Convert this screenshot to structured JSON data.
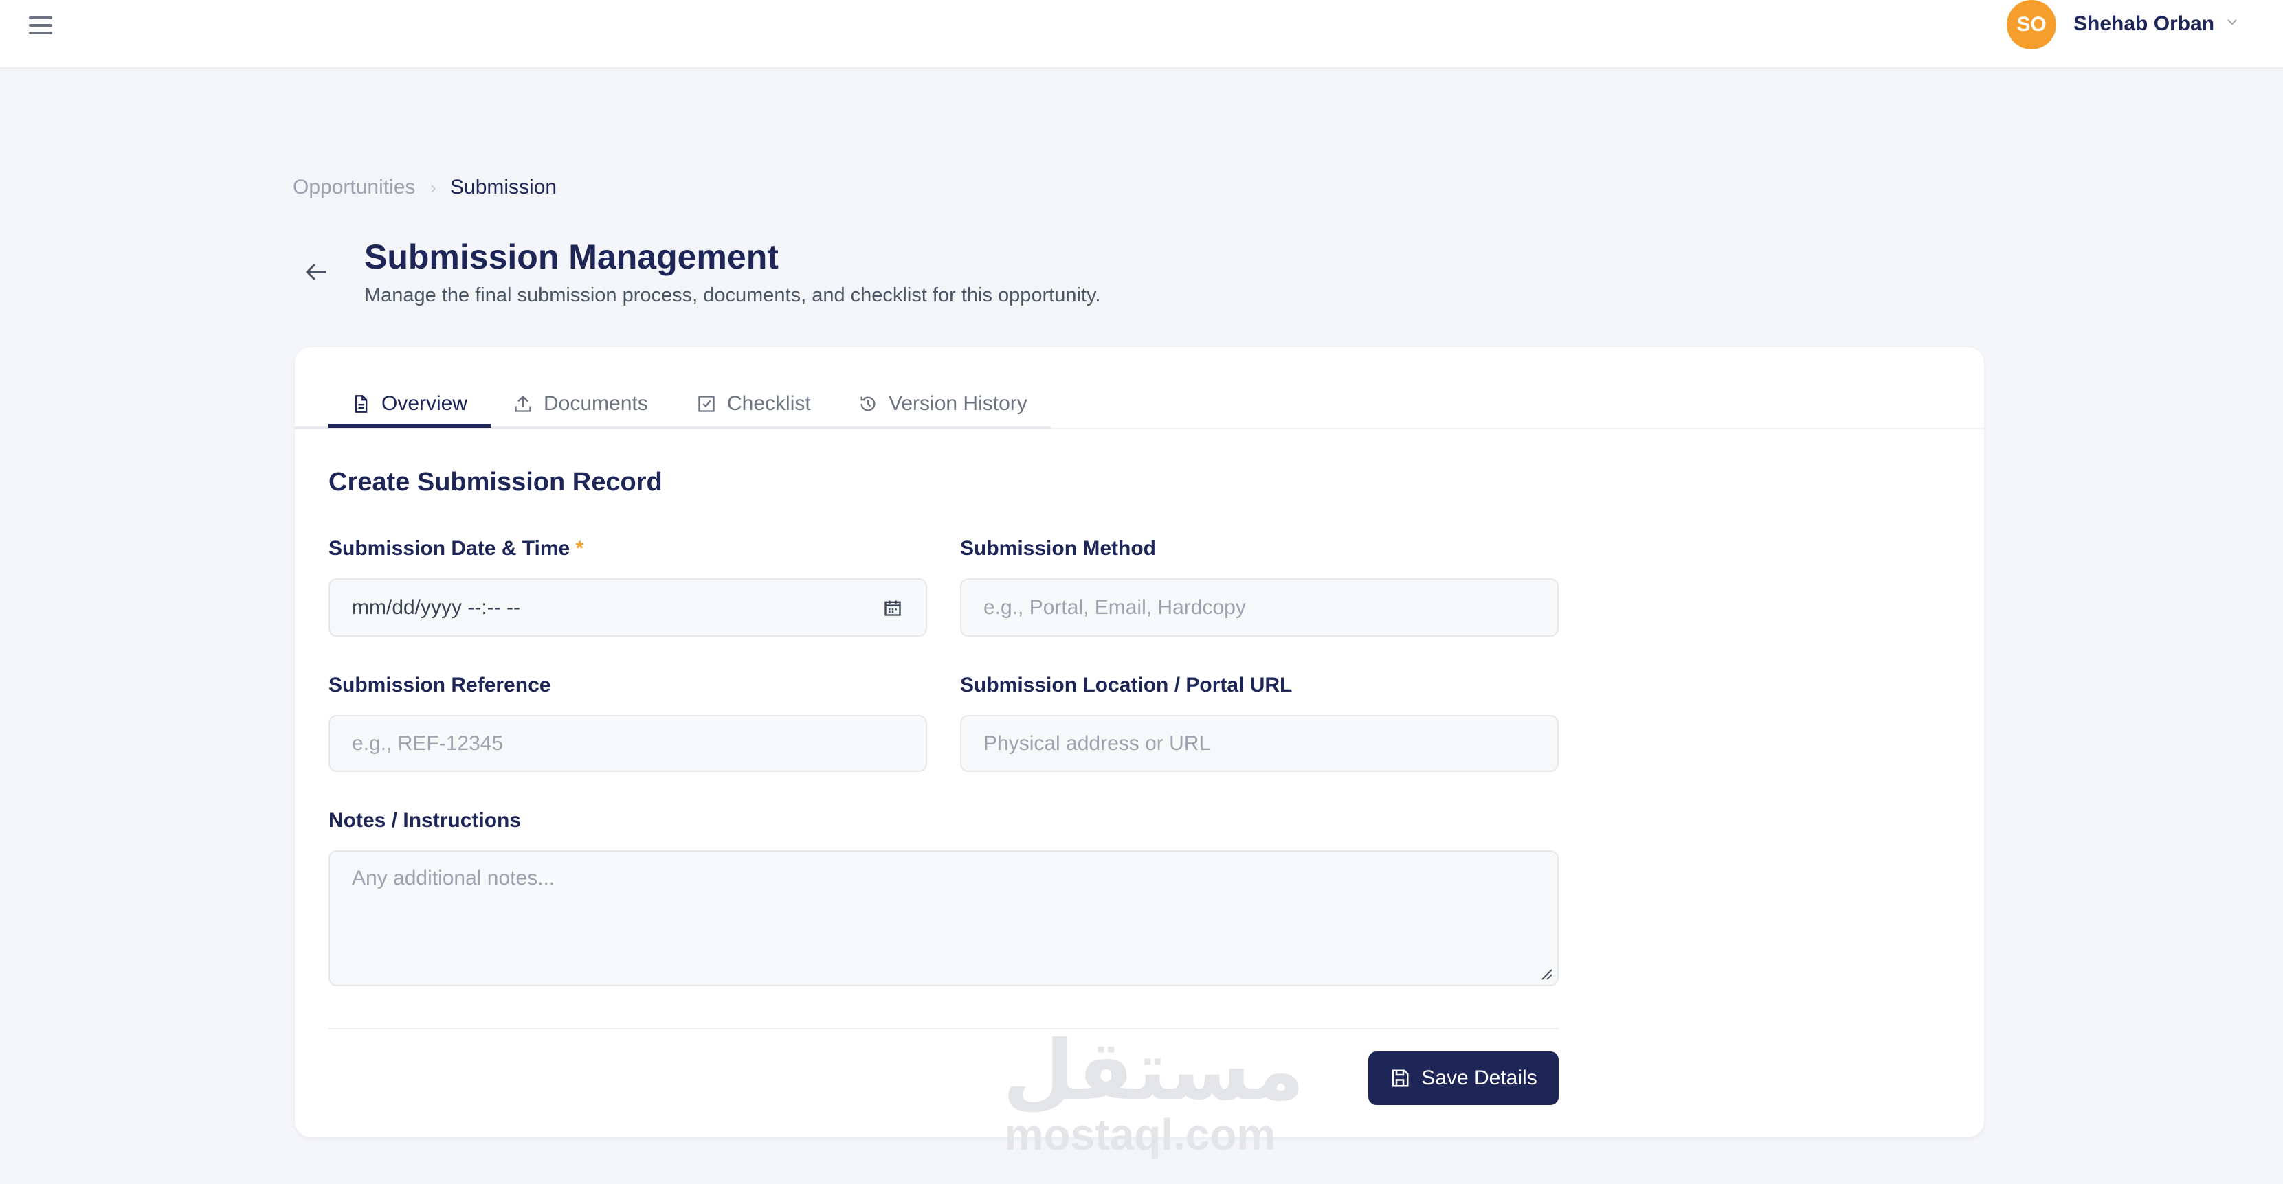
{
  "header": {
    "user_initials": "SO",
    "user_name": "Shehab Orban",
    "avatar_color": "#f59e2b"
  },
  "breadcrumb": {
    "items": [
      "Opportunities",
      "Submission"
    ],
    "separator": "›"
  },
  "page": {
    "title": "Submission Management",
    "subtitle": "Manage the final submission process, documents, and checklist for this opportunity."
  },
  "tabs": [
    {
      "label": "Overview",
      "icon": "document-icon",
      "active": true
    },
    {
      "label": "Documents",
      "icon": "upload-icon"
    },
    {
      "label": "Checklist",
      "icon": "checkbox-icon"
    },
    {
      "label": "Version History",
      "icon": "history-icon"
    }
  ],
  "form": {
    "title": "Create Submission Record",
    "date": {
      "label": "Submission Date & Time",
      "required": "*",
      "value": "mm/dd/yyyy --:-- --"
    },
    "method": {
      "label": "Submission Method",
      "placeholder": "e.g., Portal, Email, Hardcopy"
    },
    "reference": {
      "label": "Submission Reference",
      "placeholder": "e.g., REF-12345"
    },
    "location": {
      "label": "Submission Location / Portal URL",
      "placeholder": "Physical address or URL"
    },
    "notes": {
      "label": "Notes / Instructions",
      "placeholder": "Any additional notes..."
    },
    "save_label": "Save Details"
  },
  "watermark": {
    "arabic": "مستقل",
    "latin": "mostaql.com"
  },
  "colors": {
    "primary": "#1e2557",
    "accent": "#f59e2b"
  }
}
